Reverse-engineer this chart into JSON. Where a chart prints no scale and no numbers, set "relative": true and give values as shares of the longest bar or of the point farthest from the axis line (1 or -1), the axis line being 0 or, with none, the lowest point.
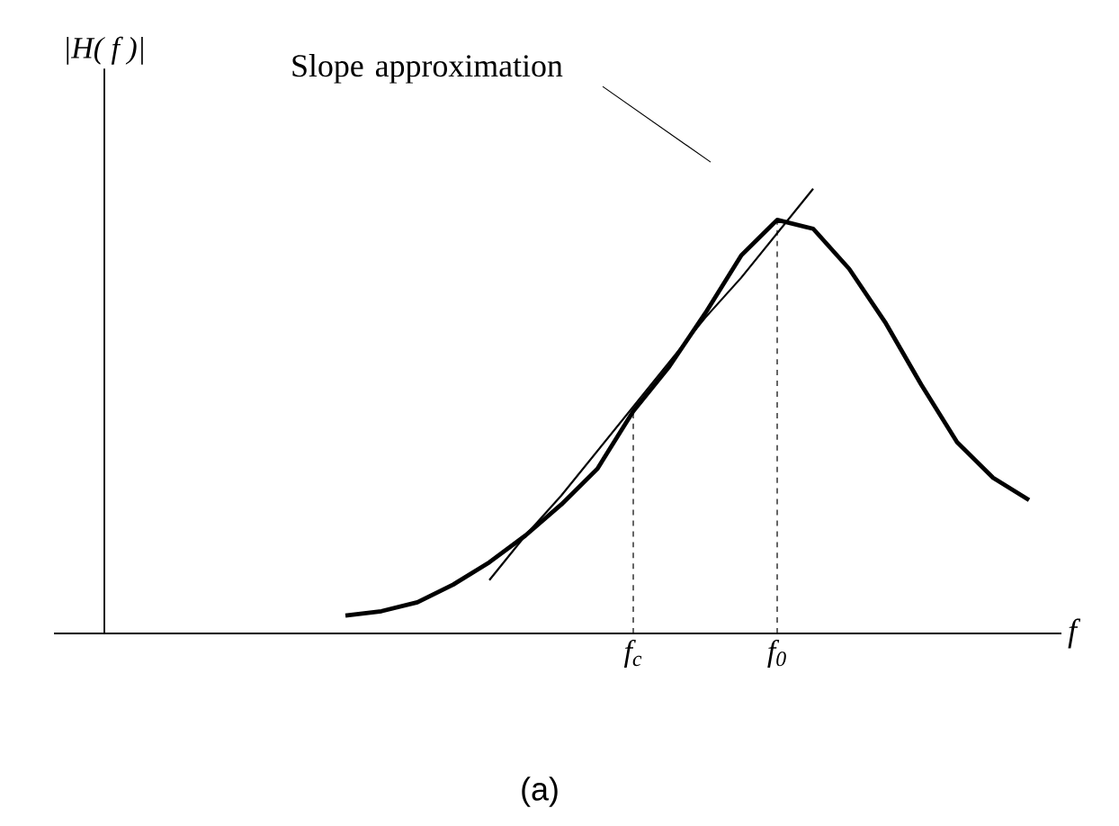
{
  "chart_data": {
    "type": "line",
    "relative": true,
    "xlabel": "f",
    "categories": [
      null,
      null,
      null,
      null,
      null,
      null,
      null,
      null,
      "f$_{c}$",
      null,
      null,
      null,
      "f$_{0}$",
      null,
      null,
      null,
      null,
      null,
      null,
      null
    ],
    "series": [
      {
        "color": "#000000",
        "values": [
          0.04,
          0.05,
          0.07,
          0.11,
          0.16,
          0.22,
          0.29,
          0.37,
          0.5,
          0.6,
          0.72,
          0.85,
          0.93,
          0.91,
          0.82,
          0.7,
          0.56,
          0.43,
          0.35,
          0.3
        ]
      },
      {
        "color": "#000000",
        "values": [
          null,
          null,
          null,
          null,
          0.12,
          0.22,
          0.31,
          0.41,
          0.51,
          0.61,
          0.71,
          0.8,
          0.9,
          1,
          null,
          null,
          null,
          null,
          null,
          null
        ]
      }
    ],
    "ref_lines": [
      {
        "axis": "x",
        "value": "f$_{c}$",
        "line_style": "dashed"
      },
      {
        "axis": "x",
        "value": "f$_{0}$",
        "line_style": "dashed"
      }
    ],
    "annotations": [
      "Slope approximation",
      "(a)",
      "|H( f )|"
    ]
  }
}
